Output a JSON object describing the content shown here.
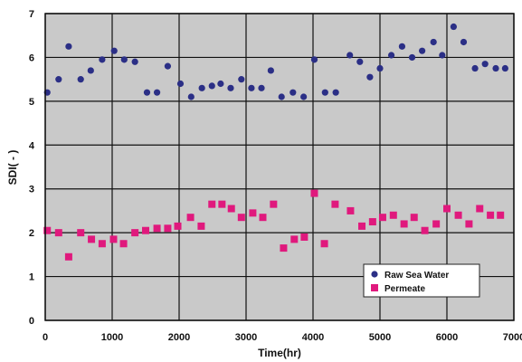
{
  "chart_data": {
    "type": "scatter",
    "xlabel": "Time(hr)",
    "ylabel": "SDI( - )",
    "xlim": [
      0,
      7000
    ],
    "ylim": [
      0,
      7
    ],
    "x_ticks": [
      "0",
      "1000",
      "2000",
      "3000",
      "4000",
      "5000",
      "6000",
      "7000"
    ],
    "y_ticks": [
      "0",
      "1",
      "2",
      "3",
      "4",
      "5",
      "6",
      "7"
    ],
    "grid": true,
    "background": "#c9c9c9",
    "legend_position": "bottom-right",
    "series": [
      {
        "name": "Raw Sea Water",
        "marker": "circle",
        "color": "#2b2f86",
        "x": [
          30,
          200,
          350,
          530,
          680,
          850,
          1030,
          1180,
          1340,
          1520,
          1670,
          1830,
          2020,
          2180,
          2340,
          2490,
          2620,
          2770,
          2930,
          3080,
          3230,
          3370,
          3530,
          3700,
          3860,
          4020,
          4180,
          4340,
          4550,
          4700,
          4850,
          5000,
          5170,
          5330,
          5480,
          5630,
          5800,
          5930,
          6100,
          6250,
          6420,
          6570,
          6730,
          6870
        ],
        "y": [
          5.2,
          5.5,
          6.25,
          5.5,
          5.7,
          5.95,
          6.15,
          5.95,
          5.9,
          5.2,
          5.2,
          5.8,
          5.4,
          5.1,
          5.3,
          5.35,
          5.4,
          5.3,
          5.5,
          5.3,
          5.3,
          5.7,
          5.1,
          5.2,
          5.1,
          5.95,
          5.2,
          5.2,
          6.05,
          5.9,
          5.55,
          5.75,
          6.05,
          6.25,
          6.0,
          6.15,
          6.35,
          6.05,
          6.7,
          6.35,
          5.75,
          5.85,
          5.75,
          5.75
        ]
      },
      {
        "name": "Permeate",
        "marker": "square",
        "color": "#e0197d",
        "x": [
          30,
          200,
          350,
          530,
          690,
          850,
          1020,
          1170,
          1340,
          1500,
          1670,
          1830,
          1980,
          2170,
          2330,
          2490,
          2640,
          2780,
          2930,
          3100,
          3250,
          3410,
          3560,
          3720,
          3870,
          4020,
          4170,
          4330,
          4560,
          4730,
          4890,
          5040,
          5200,
          5360,
          5510,
          5670,
          5840,
          6000,
          6170,
          6330,
          6490,
          6650,
          6800
        ],
        "y": [
          2.05,
          2.0,
          1.45,
          2.0,
          1.85,
          1.75,
          1.85,
          1.75,
          2.0,
          2.05,
          2.1,
          2.1,
          2.15,
          2.35,
          2.15,
          2.65,
          2.65,
          2.55,
          2.35,
          2.45,
          2.35,
          2.65,
          1.65,
          1.85,
          1.9,
          2.9,
          1.75,
          2.65,
          2.5,
          2.15,
          2.25,
          2.35,
          2.4,
          2.2,
          2.35,
          2.05,
          2.2,
          2.55,
          2.4,
          2.2,
          2.55,
          2.4,
          2.4
        ]
      }
    ]
  }
}
